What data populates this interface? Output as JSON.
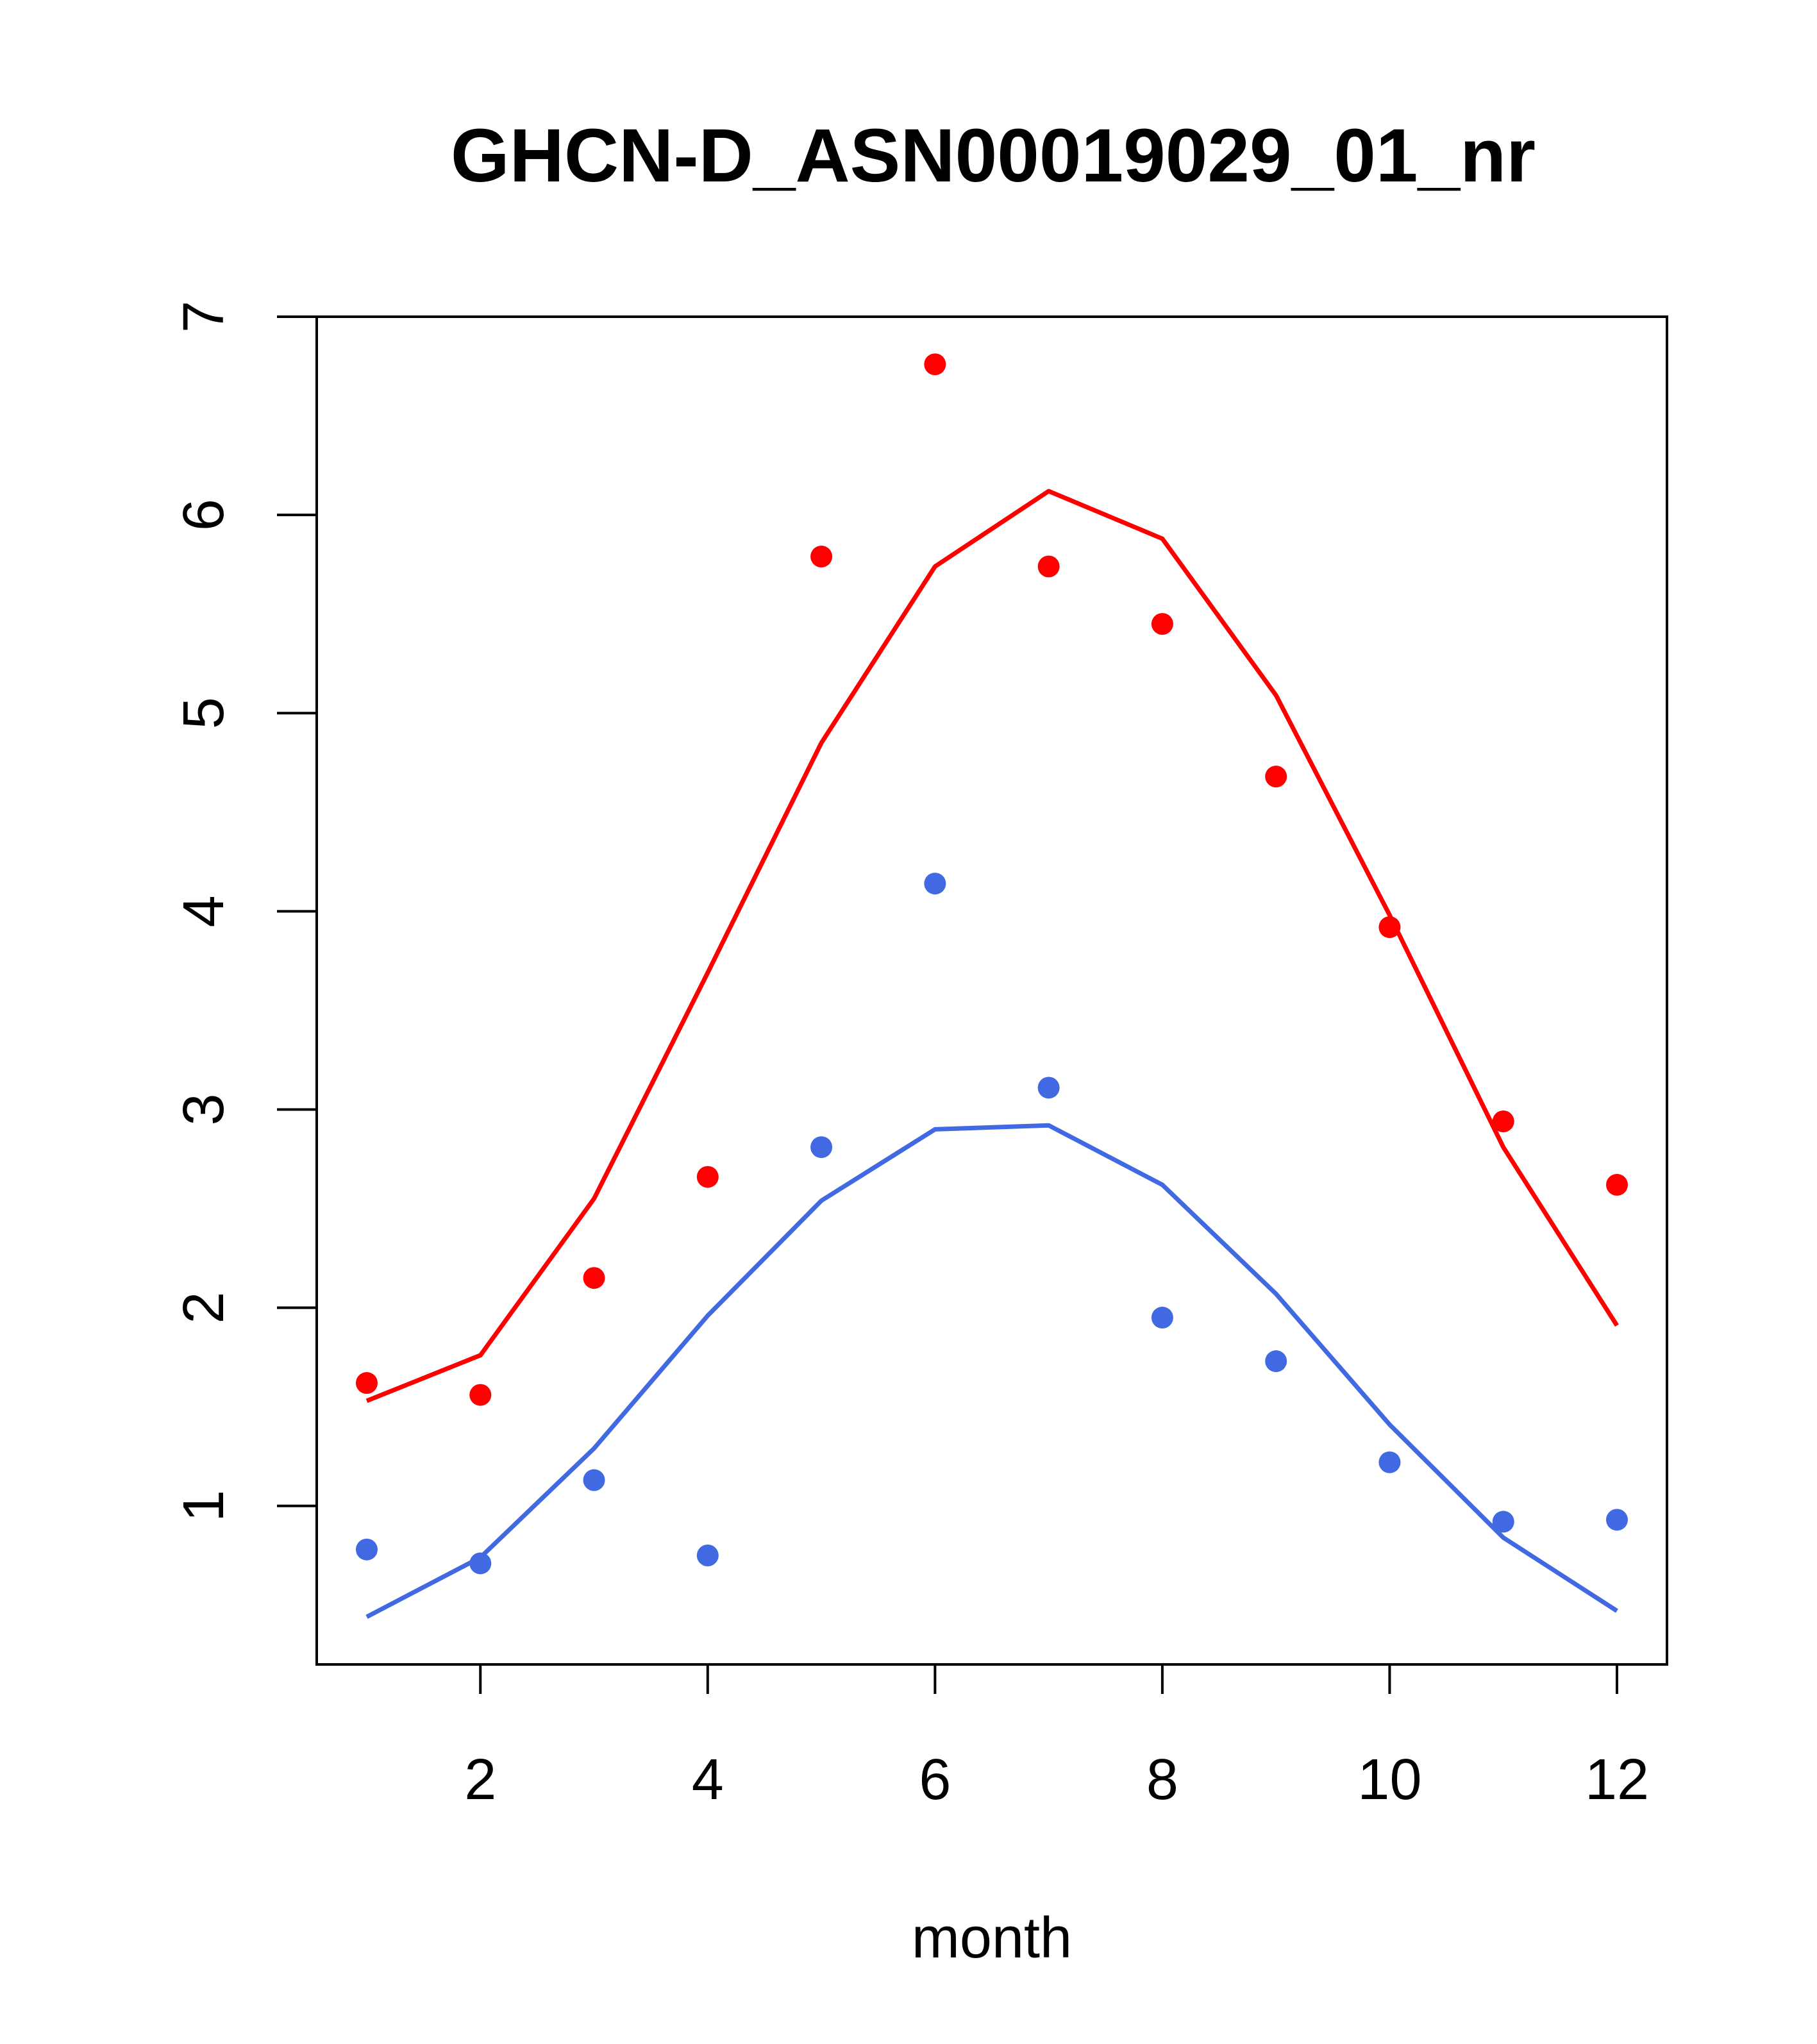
{
  "chart_data": {
    "type": "scatter",
    "title": "GHCN-D_ASN00019029_01_nr",
    "xlabel": "month",
    "ylabel": "",
    "xlim": [
      0.56,
      12.44
    ],
    "ylim": [
      0.2,
      7.0
    ],
    "xticks": [
      2,
      4,
      6,
      8,
      10,
      12
    ],
    "yticks": [
      1,
      2,
      3,
      4,
      5,
      6,
      7
    ],
    "grid": false,
    "legend": "none",
    "x": [
      1,
      2,
      3,
      4,
      5,
      6,
      7,
      8,
      9,
      10,
      11,
      12
    ],
    "series": [
      {
        "color": "#ff0000",
        "points": [
          1.62,
          1.56,
          2.15,
          2.66,
          5.79,
          6.76,
          5.74,
          5.45,
          4.68,
          3.92,
          2.94,
          2.62
        ],
        "line": [
          1.53,
          1.76,
          2.55,
          3.69,
          4.85,
          5.74,
          6.12,
          5.88,
          5.09,
          3.98,
          2.81,
          1.91
        ]
      },
      {
        "color": "#4169e1",
        "points": [
          0.78,
          0.71,
          1.13,
          0.75,
          2.81,
          4.14,
          3.11,
          1.95,
          1.73,
          1.22,
          0.92,
          0.93
        ],
        "line": [
          0.44,
          0.74,
          1.29,
          1.96,
          2.54,
          2.9,
          2.92,
          2.62,
          2.07,
          1.41,
          0.84,
          0.47
        ]
      }
    ]
  }
}
